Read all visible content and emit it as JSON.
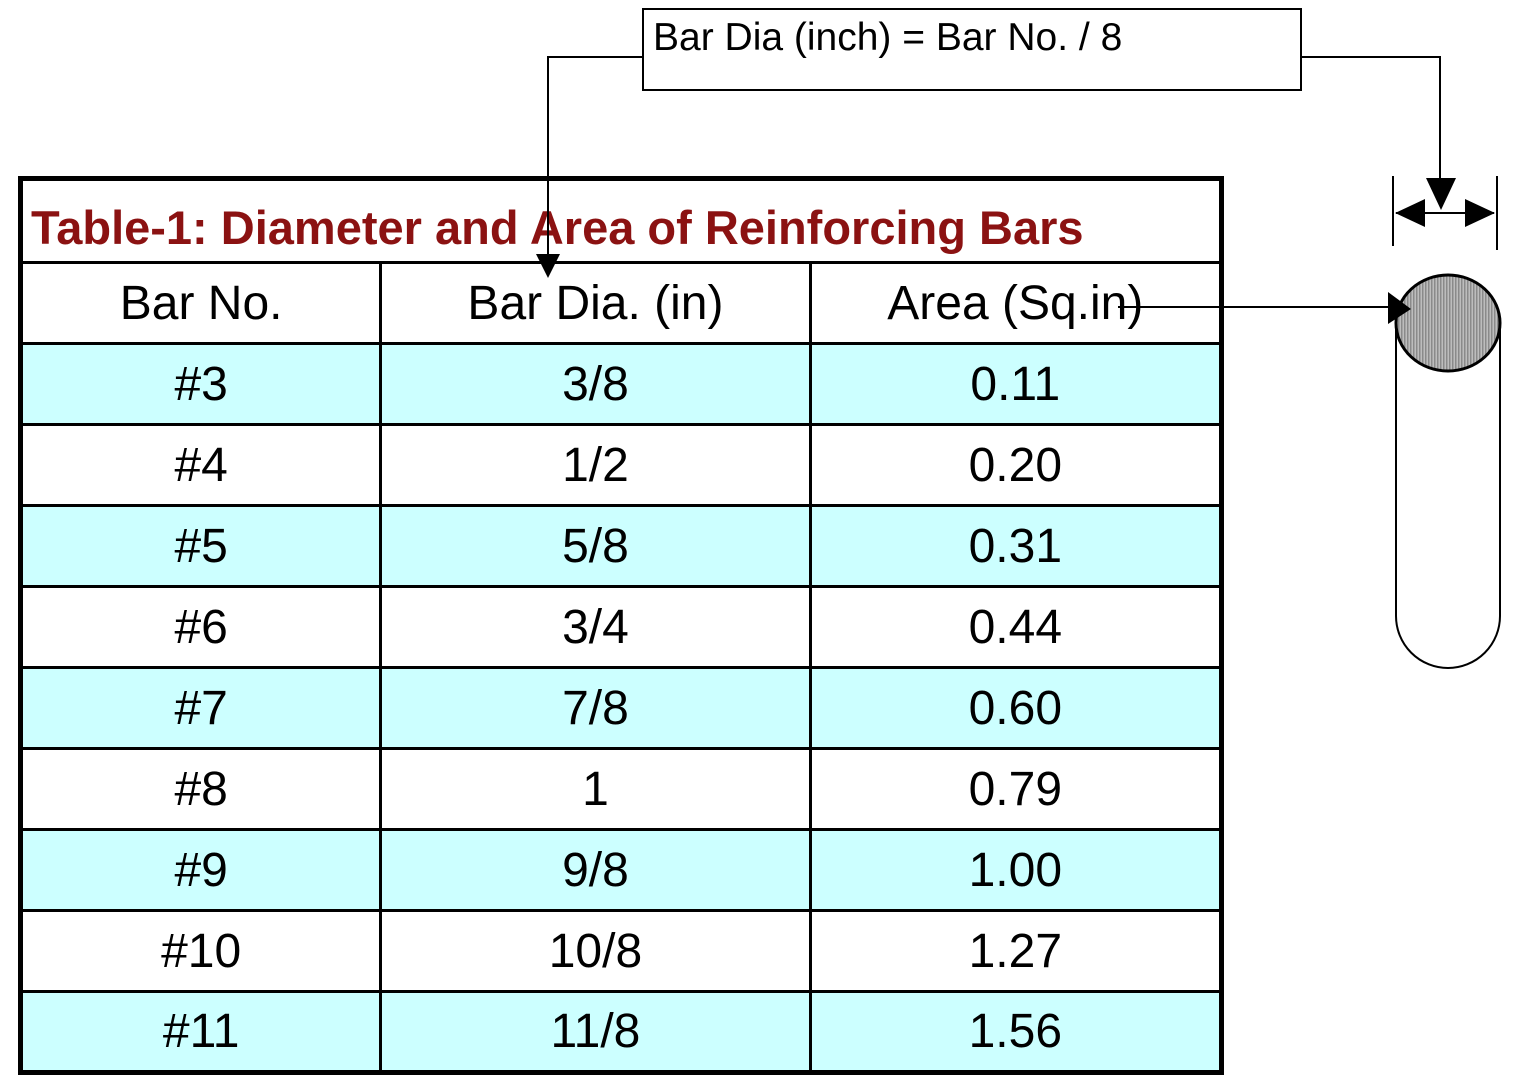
{
  "formula": {
    "text": "Bar Dia (inch) = Bar No. / 8"
  },
  "table": {
    "title": "Table-1: Diameter and Area of Reinforcing Bars",
    "headers": [
      "Bar No.",
      "Bar Dia. (in)",
      "Area (Sq.in)"
    ],
    "rows": [
      [
        "#3",
        "3/8",
        "0.11"
      ],
      [
        "#4",
        "1/2",
        "0.20"
      ],
      [
        "#5",
        "5/8",
        "0.31"
      ],
      [
        "#6",
        "3/4",
        "0.44"
      ],
      [
        "#7",
        "7/8",
        "0.60"
      ],
      [
        "#8",
        "1",
        "0.79"
      ],
      [
        "#9",
        "9/8",
        "1.00"
      ],
      [
        "#10",
        "10/8",
        "1.27"
      ],
      [
        "#11",
        "11/8",
        "1.56"
      ]
    ]
  },
  "colors": {
    "title": "#8b1212",
    "shaded_row": "#ccffff",
    "bar_fill": "#a8a8a8"
  },
  "diagram": {
    "elements": [
      "bar-cylinder",
      "diameter-dimension-arrow",
      "area-leader-arrow",
      "diameter-leader-arrow"
    ]
  }
}
